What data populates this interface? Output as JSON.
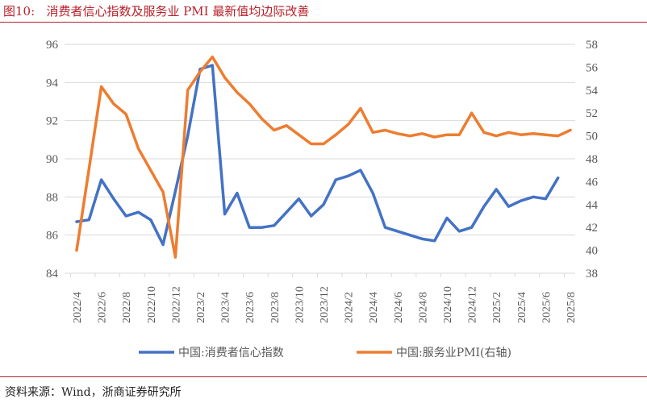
{
  "title": "图10:   消费者信心指数及服务业 PMI 最新值均边际改善",
  "source": "资料来源：Wind，浙商证券研究所",
  "chart_data": {
    "type": "line",
    "x": [
      "2022/4",
      "2022/5",
      "2022/6",
      "2022/7",
      "2022/8",
      "2022/9",
      "2022/10",
      "2022/11",
      "2022/12",
      "2023/1",
      "2023/2",
      "2023/3",
      "2023/4",
      "2023/5",
      "2023/6",
      "2023/7",
      "2023/8",
      "2023/9",
      "2023/10",
      "2023/11",
      "2023/12",
      "2024/1",
      "2024/2",
      "2024/3",
      "2024/4",
      "2024/5",
      "2024/6",
      "2024/7",
      "2024/8",
      "2024/9",
      "2024/10",
      "2024/11",
      "2024/12",
      "2025/1",
      "2025/2",
      "2025/3",
      "2025/4",
      "2025/5",
      "2025/6",
      "2025/7",
      "2025/8"
    ],
    "xtick_labels": [
      "2022/4",
      "2022/6",
      "2022/8",
      "2022/10",
      "2022/12",
      "2023/2",
      "2023/4",
      "2023/6",
      "2023/8",
      "2023/10",
      "2023/12",
      "2024/2",
      "2024/4",
      "2024/6",
      "2024/8",
      "2024/10",
      "2024/12",
      "2025/2",
      "2025/4",
      "2025/6",
      "2025/8"
    ],
    "series": [
      {
        "name": "中国:消费者信心指数",
        "axis": "left",
        "color": "#4472c4",
        "values": [
          86.7,
          86.8,
          88.9,
          87.9,
          87.0,
          87.2,
          86.8,
          85.5,
          88.3,
          91.2,
          94.7,
          94.9,
          87.1,
          88.2,
          86.4,
          86.4,
          86.5,
          87.2,
          87.9,
          87.0,
          87.6,
          88.9,
          89.1,
          89.4,
          88.2,
          86.4,
          86.2,
          86.0,
          85.8,
          85.7,
          86.9,
          86.2,
          86.4,
          87.5,
          88.4,
          87.5,
          87.8,
          88.0,
          87.9,
          89.0,
          null
        ]
      },
      {
        "name": "中国:服务业PMI(右轴)",
        "axis": "right",
        "color": "#ed7d31",
        "values": [
          40.0,
          47.1,
          54.3,
          52.8,
          51.9,
          48.9,
          47.0,
          45.1,
          39.4,
          54.0,
          55.6,
          56.9,
          55.1,
          53.8,
          52.8,
          51.5,
          50.5,
          50.9,
          50.1,
          49.3,
          49.3,
          50.1,
          51.0,
          52.4,
          50.3,
          50.5,
          50.2,
          50.0,
          50.2,
          49.9,
          50.1,
          50.1,
          52.0,
          50.3,
          50.0,
          50.3,
          50.1,
          50.2,
          50.1,
          50.0,
          50.5
        ]
      }
    ],
    "ylim_left": [
      84,
      96
    ],
    "yticks_left": [
      84,
      86,
      88,
      90,
      92,
      94,
      96
    ],
    "ylim_right": [
      38,
      58
    ],
    "yticks_right": [
      38,
      40,
      42,
      44,
      46,
      48,
      50,
      52,
      54,
      56,
      58
    ],
    "grid": true,
    "legend": "bottom"
  }
}
